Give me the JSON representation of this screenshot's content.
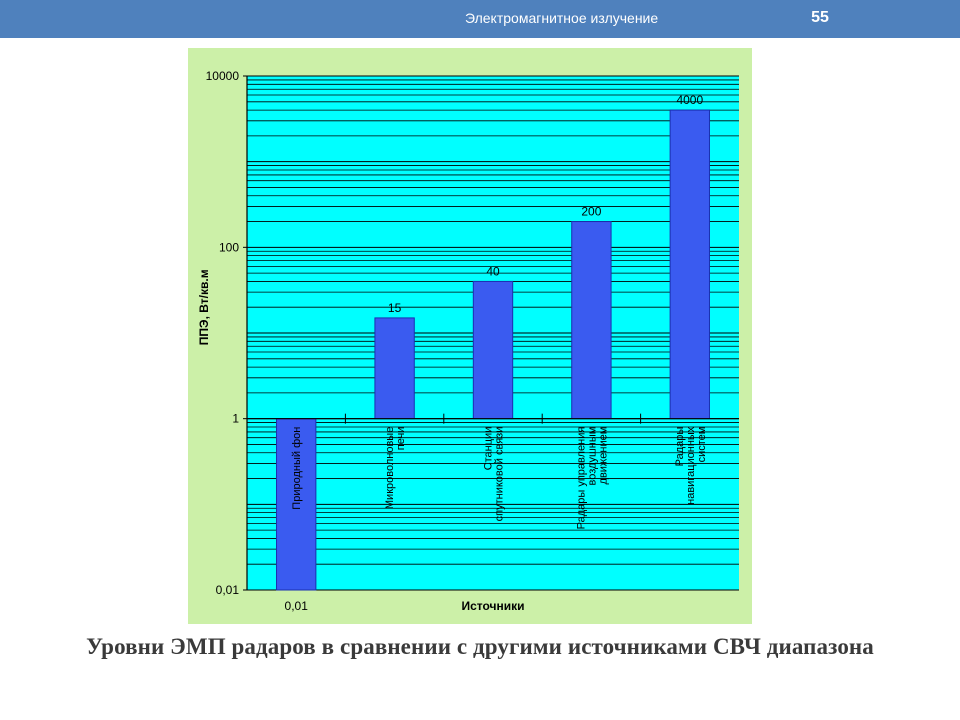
{
  "header": {
    "title": "Электромагнитное излучение",
    "page_number": "55"
  },
  "colors": {
    "header_bg": "#4f81bd",
    "chart_outer_bg": "#ccf0a8",
    "plot_bg": "#00ffff",
    "bar_fill": "#3a5bf0",
    "bar_stroke": "#1a2fb0",
    "grid": "#000000"
  },
  "chart_data": {
    "type": "bar",
    "title": "",
    "xlabel": "Источники",
    "ylabel": "ППЭ, Вт/кв.м",
    "yscale": "log",
    "ylim": [
      0.01,
      10000
    ],
    "ytick_labels": [
      "0,01",
      "1",
      "100",
      "10000"
    ],
    "grid": true,
    "categories": [
      "Природный фон",
      "Микроволновые печи",
      "Станции спутниковой связи",
      "Радары управления воздушным движением",
      "Радары навигационных систем"
    ],
    "category_label_lines": [
      [
        "Природный фон"
      ],
      [
        "Микроволновые",
        "печи"
      ],
      [
        "Станции",
        "спутниковой связи"
      ],
      [
        "Радары управления",
        "воздушным",
        "движением"
      ],
      [
        "Радары",
        "навигационных",
        "систем"
      ]
    ],
    "values": [
      0.01,
      15,
      40,
      200,
      4000
    ],
    "data_labels": [
      "0,01",
      "15",
      "40",
      "200",
      "4000"
    ]
  },
  "caption": "Уровни ЭМП радаров в сравнении с другими источниками СВЧ диапазона"
}
